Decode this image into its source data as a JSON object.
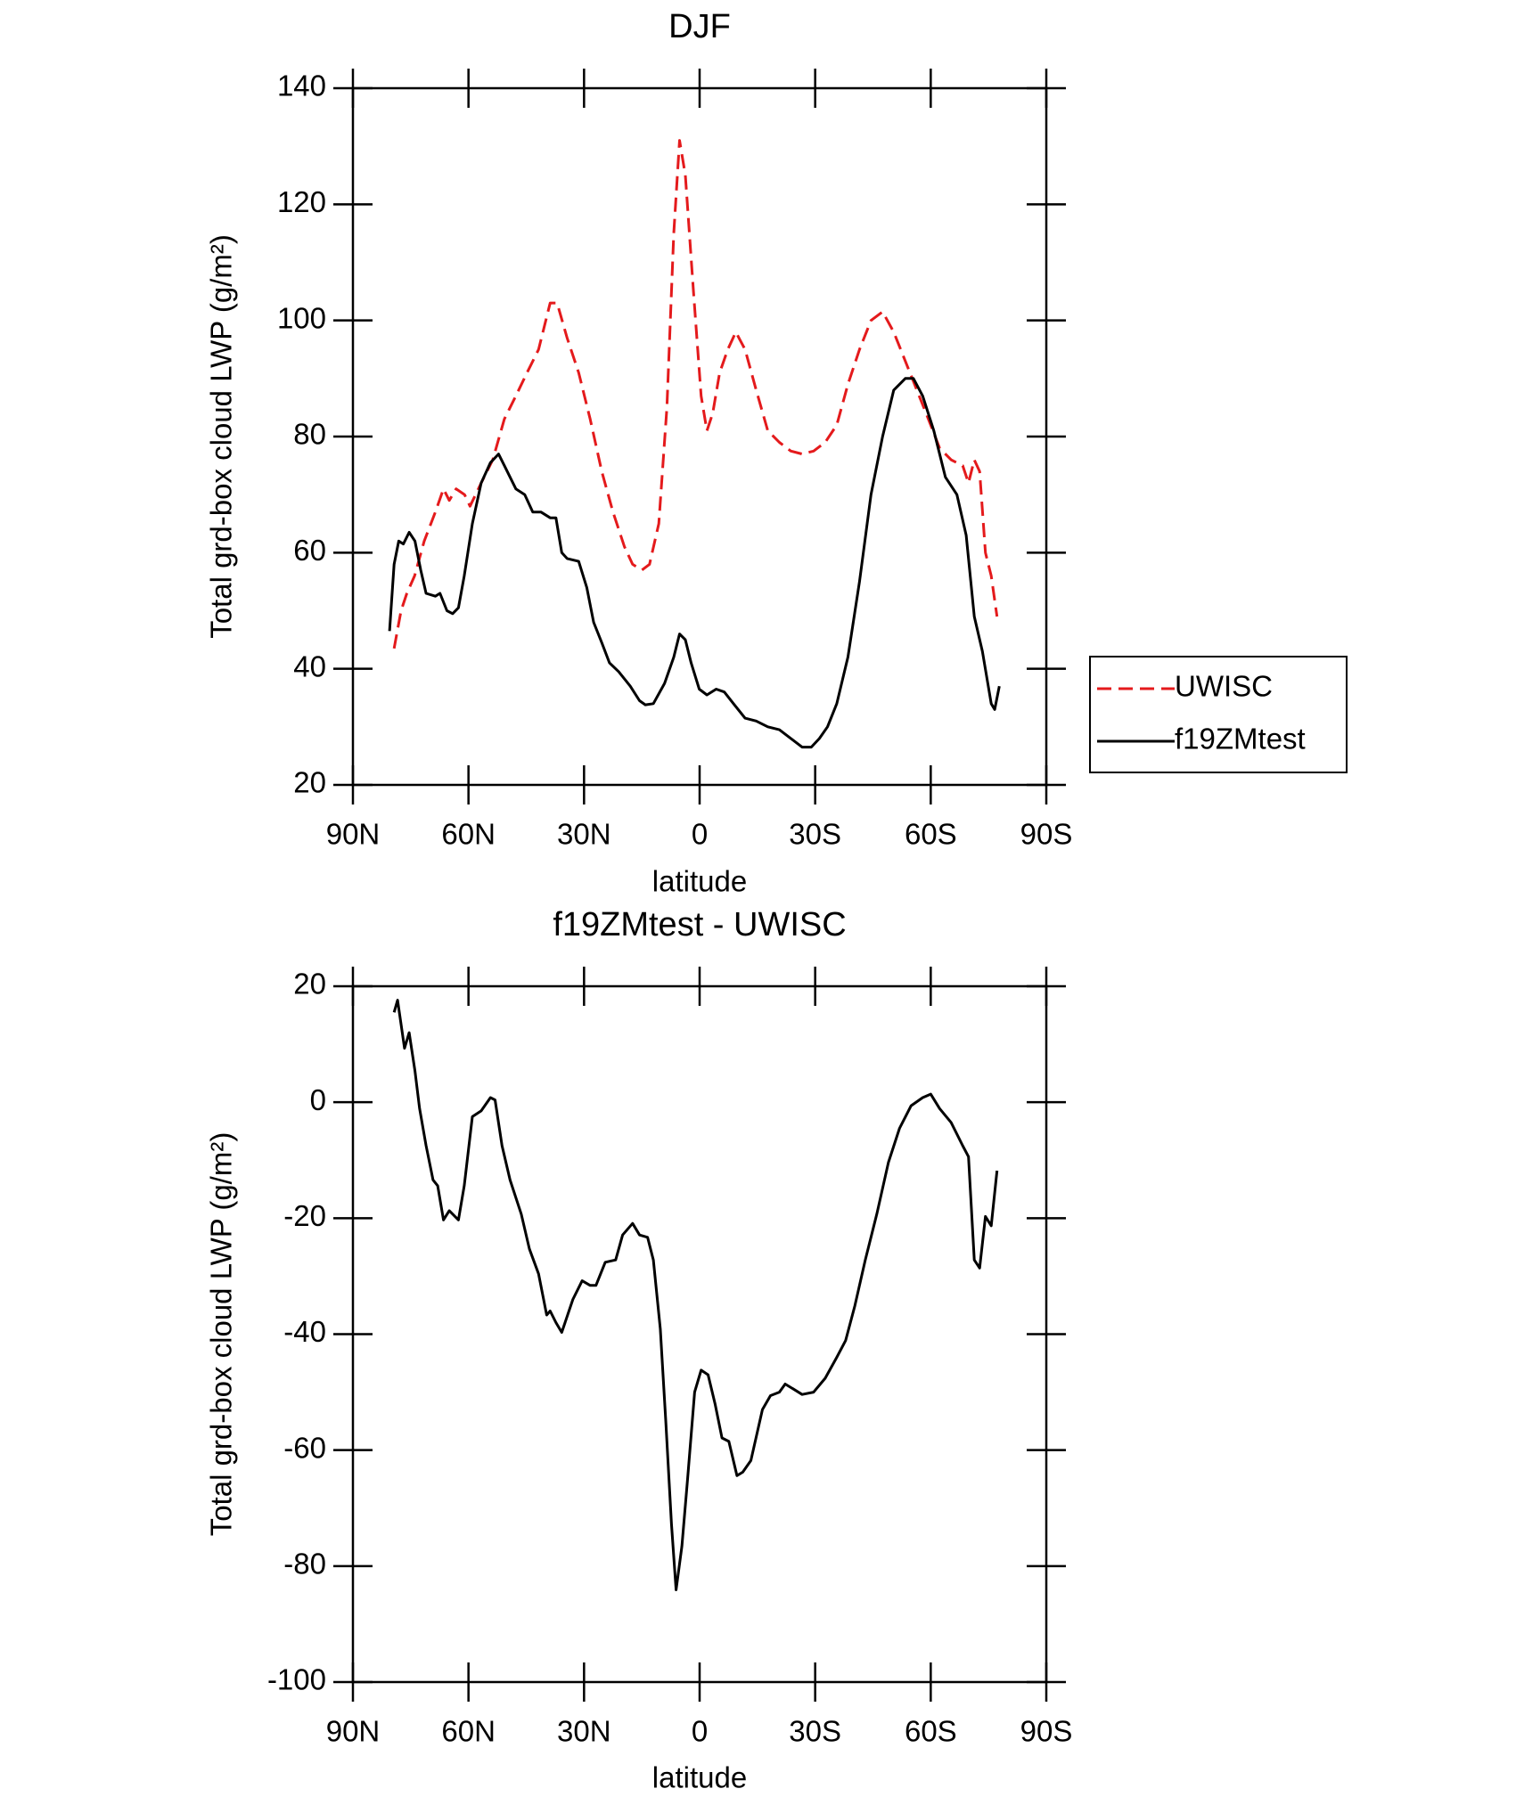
{
  "chart_data": [
    {
      "type": "line",
      "title": "DJF",
      "xlabel": "latitude",
      "ylabel": "Total grd-box cloud LWP (g/m²)",
      "xlim": [
        90,
        -90
      ],
      "xticks": [
        {
          "value": 90,
          "label": "90N"
        },
        {
          "value": 60,
          "label": "60N"
        },
        {
          "value": 30,
          "label": "30N"
        },
        0,
        {
          "value": -30,
          "label": "30S"
        },
        {
          "value": -60,
          "label": "60S"
        },
        {
          "value": -90,
          "label": "90S"
        }
      ],
      "ylim": [
        20,
        140
      ],
      "yticks": [
        20,
        40,
        60,
        80,
        100,
        120,
        140
      ],
      "legend": "right",
      "series": [
        {
          "name": "UWISC",
          "color": "#e41a1c",
          "linestyle": "dashed",
          "x": [
            79.3,
            77.5,
            76,
            74,
            71.5,
            68.6,
            66.5,
            65,
            63.2,
            61,
            59.6,
            56.7,
            53.7,
            50.7,
            47.7,
            44.8,
            41.8,
            38.8,
            37,
            34.4,
            31.4,
            28.4,
            25.4,
            22.5,
            19.5,
            17.4,
            15,
            13,
            10.6,
            8.5,
            6.7,
            5.2,
            3.7,
            1.6,
            -0.4,
            -1.9,
            -3.4,
            -5.2,
            -7.3,
            -9.4,
            -11.8,
            -14.7,
            -17.7,
            -20.7,
            -23.7,
            -26.6,
            -29.6,
            -32.6,
            -35.6,
            -38.5,
            -41.5,
            -44.5,
            -47.5,
            -50.4,
            -53.4,
            -56.4,
            -59.4,
            -62.3,
            -65.3,
            -68.3,
            -69.8,
            -71.3,
            -72.7,
            -74.2,
            -75.7,
            -77.2
          ],
          "values": [
            43.5,
            50,
            53,
            56,
            62,
            67,
            71,
            69,
            71,
            70,
            68,
            72,
            76,
            83,
            87,
            91,
            95,
            103,
            103,
            97,
            91,
            83,
            74,
            67,
            61,
            58,
            57,
            58,
            65,
            85,
            115,
            131,
            125,
            105,
            87,
            81,
            84,
            91,
            95,
            98,
            95,
            88,
            81,
            79,
            77.5,
            77,
            77.5,
            79,
            82,
            89,
            95,
            100,
            101.5,
            98,
            93,
            88,
            83,
            78,
            76,
            75,
            72,
            76,
            74,
            60,
            56,
            49
          ]
        },
        {
          "name": "f19ZMtest",
          "color": "#000000",
          "linestyle": "solid",
          "x": [
            80.5,
            79.3,
            78.1,
            76.9,
            75.4,
            73.9,
            72.4,
            71,
            68.6,
            67.4,
            65.6,
            64.1,
            62.6,
            61.1,
            59,
            56.7,
            54.3,
            52.2,
            50.7,
            47.7,
            45.4,
            43.3,
            41.2,
            38.8,
            37.3,
            35.8,
            34.4,
            31.4,
            29.3,
            27.5,
            25.4,
            23.4,
            21,
            18,
            15.6,
            14.1,
            12,
            9.1,
            6.7,
            5.2,
            3.7,
            2.2,
            0.1,
            -1.9,
            -4.3,
            -6.4,
            -8.8,
            -11.8,
            -14.7,
            -17.7,
            -20.7,
            -23.7,
            -26.6,
            -29,
            -31.1,
            -33.2,
            -35.6,
            -38.5,
            -41.5,
            -44.5,
            -47.5,
            -50.4,
            -53.4,
            -55.5,
            -57.9,
            -60.8,
            -63.8,
            -66.8,
            -69.2,
            -71.3,
            -73.4,
            -75.7,
            -76.6,
            -77.8
          ],
          "values": [
            46.5,
            58,
            62,
            61.5,
            63.5,
            62,
            57,
            53,
            52.5,
            53,
            50,
            49.5,
            50.5,
            56,
            65,
            72,
            75.5,
            77,
            75,
            71,
            70,
            67,
            67,
            66,
            66,
            60,
            59,
            58.5,
            54,
            48,
            44.5,
            41,
            39.5,
            37,
            34.5,
            33.8,
            34,
            37.5,
            42,
            46,
            45,
            41,
            36.5,
            35.5,
            36.5,
            36,
            34,
            31.5,
            31,
            30,
            29.5,
            28,
            26.5,
            26.5,
            28,
            30,
            34,
            42,
            55,
            70,
            80,
            88,
            90,
            90,
            87,
            81,
            73,
            70,
            63,
            49,
            43,
            34,
            33,
            37
          ]
        }
      ]
    },
    {
      "type": "line",
      "title": "f19ZMtest - UWISC",
      "xlabel": "latitude",
      "ylabel": "Total grd-box cloud LWP (g/m²)",
      "xlim": [
        90,
        -90
      ],
      "xticks": [
        {
          "value": 90,
          "label": "90N"
        },
        {
          "value": 60,
          "label": "60N"
        },
        {
          "value": 30,
          "label": "30N"
        },
        0,
        {
          "value": -30,
          "label": "30S"
        },
        {
          "value": -60,
          "label": "60S"
        },
        {
          "value": -90,
          "label": "90S"
        }
      ],
      "ylim": [
        -100,
        20
      ],
      "yticks": [
        -100,
        -80,
        -60,
        -40,
        -20,
        0,
        20
      ],
      "series": [
        {
          "color": "#000000",
          "linestyle": "solid",
          "x": [
            79.3,
            78.4,
            76.6,
            75.4,
            73.9,
            72.7,
            71,
            69.2,
            68,
            66.5,
            65,
            62.6,
            61.1,
            59,
            56.7,
            54.3,
            53.1,
            51.3,
            49.2,
            46.3,
            44.2,
            41.8,
            39.7,
            38.8,
            37.3,
            35.8,
            32.9,
            30.5,
            28.4,
            26.9,
            24.5,
            21.8,
            20,
            17.4,
            15.6,
            13.5,
            12,
            10.2,
            8.8,
            7.3,
            6.1,
            4.6,
            3.1,
            1.3,
            -0.4,
            -2.2,
            -4,
            -5.8,
            -7.6,
            -9.7,
            -11.2,
            -13.3,
            -16.3,
            -18.4,
            -20.7,
            -22.2,
            -24.2,
            -26.6,
            -29.6,
            -32.6,
            -35.6,
            -37.9,
            -40.3,
            -43,
            -46,
            -49,
            -51.9,
            -54.9,
            -57.9,
            -60,
            -62.3,
            -65.3,
            -68.3,
            -69.8,
            -71.3,
            -72.7,
            -74.2,
            -75.7,
            -77.2
          ],
          "values": [
            15.5,
            17.6,
            9.3,
            12,
            5.4,
            -1.1,
            -7.5,
            -13.4,
            -14.4,
            -20.3,
            -18.7,
            -20.3,
            -14.4,
            -2.5,
            -1.5,
            0.8,
            0.4,
            -7.5,
            -13.4,
            -19.3,
            -25.3,
            -29.6,
            -36.7,
            -36,
            -38,
            -39.7,
            -34,
            -30.8,
            -31.6,
            -31.6,
            -27.6,
            -27.2,
            -22.9,
            -20.9,
            -22.9,
            -23.3,
            -27.2,
            -39.1,
            -54.9,
            -72.7,
            -84.1,
            -76.6,
            -64.8,
            -50,
            -46.2,
            -47,
            -52,
            -57.9,
            -58.5,
            -64.4,
            -63.8,
            -61.8,
            -53,
            -50.6,
            -50,
            -48.6,
            -49.4,
            -50.4,
            -50,
            -47.6,
            -44,
            -41.1,
            -35.1,
            -27.2,
            -19.3,
            -10.4,
            -4.5,
            -0.6,
            0.8,
            1.4,
            -1.1,
            -3.5,
            -7.5,
            -9.4,
            -27.2,
            -28.6,
            -19.7,
            -21.3,
            -11.8
          ]
        }
      ]
    }
  ]
}
